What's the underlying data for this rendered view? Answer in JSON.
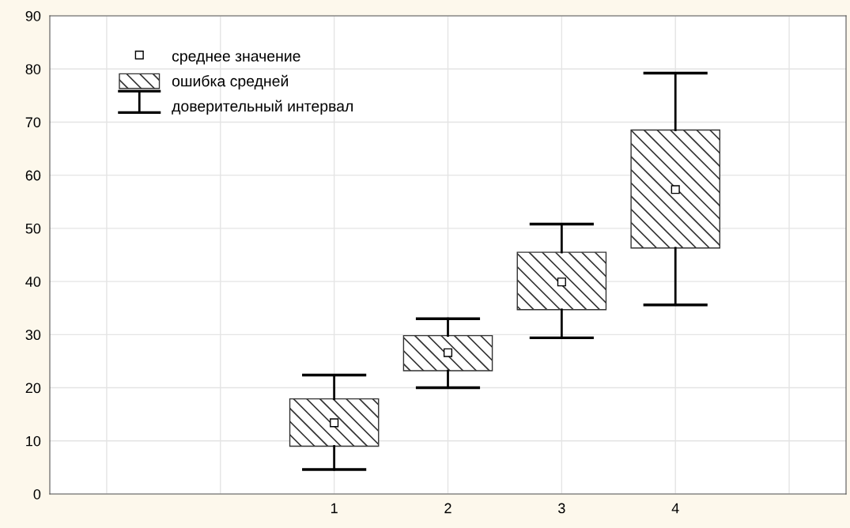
{
  "chart_data": {
    "type": "box",
    "categories": [
      null,
      null,
      "1",
      "2",
      "3",
      "4",
      null
    ],
    "boxes": [
      null,
      null,
      {
        "low": 4.6,
        "q1": 9.0,
        "mean": 13.4,
        "q3": 17.9,
        "high": 22.4
      },
      {
        "low": 20.0,
        "q1": 23.2,
        "mean": 26.6,
        "q3": 29.8,
        "high": 33.0
      },
      {
        "low": 29.4,
        "q1": 34.7,
        "mean": 39.9,
        "q3": 45.5,
        "high": 50.8
      },
      {
        "low": 35.6,
        "q1": 46.3,
        "mean": 57.3,
        "q3": 68.5,
        "high": 79.2
      },
      null
    ],
    "ylim": [
      0,
      90
    ],
    "yticks": [
      0,
      10,
      20,
      30,
      40,
      50,
      60,
      70,
      80,
      90
    ],
    "grid": true,
    "marker": "square",
    "annotations": [
      "среднее значение",
      "ошибка средней",
      "доверительный интервал"
    ]
  }
}
